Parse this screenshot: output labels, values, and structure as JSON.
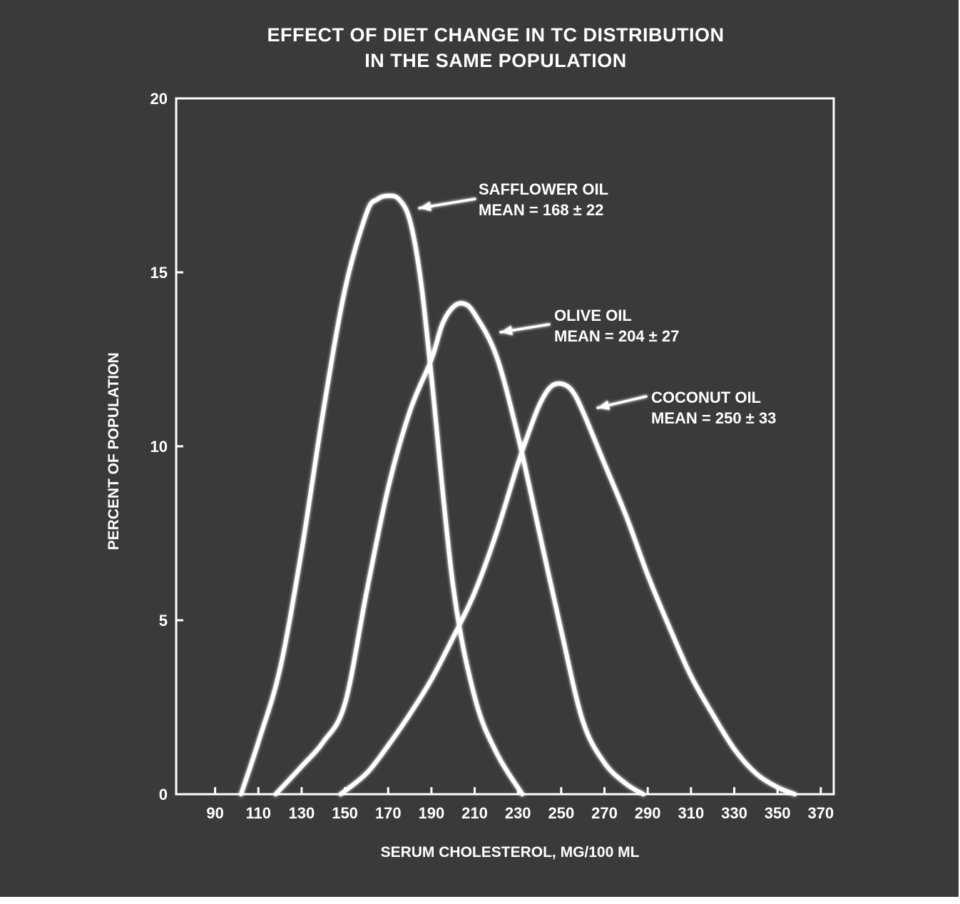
{
  "chart_data": {
    "type": "line",
    "title": "EFFECT OF DIET CHANGE IN TC DISTRIBUTION",
    "subtitle": "IN THE SAME POPULATION",
    "xlabel": "SERUM CHOLESTEROL, MG/100 ML",
    "ylabel": "PERCENT OF POPULATION",
    "xlim": [
      72,
      376
    ],
    "ylim": [
      0,
      20
    ],
    "xticks": [
      90,
      110,
      130,
      150,
      170,
      190,
      210,
      230,
      250,
      270,
      290,
      310,
      330,
      350,
      370
    ],
    "yticks": [
      0,
      5,
      10,
      15,
      20
    ],
    "grid": false,
    "series": [
      {
        "id": "safflower",
        "annotation": [
          "SAFFLOWER OIL",
          "MEAN = 168 ± 22"
        ],
        "x": [
          102,
          110,
          120,
          130,
          140,
          150,
          160,
          165,
          170,
          175,
          180,
          185,
          190,
          200,
          210,
          220,
          232
        ],
        "y": [
          0,
          1.5,
          3.6,
          7.0,
          11.0,
          14.5,
          16.7,
          17.1,
          17.2,
          17.1,
          16.5,
          14.8,
          12.0,
          6.0,
          2.8,
          1.2,
          0
        ]
      },
      {
        "id": "olive",
        "annotation": [
          "OLIVE OIL",
          "MEAN = 204 ± 27"
        ],
        "x": [
          118,
          130,
          140,
          150,
          160,
          170,
          180,
          190,
          195,
          200,
          205,
          210,
          220,
          230,
          240,
          250,
          260,
          270,
          280,
          288
        ],
        "y": [
          0,
          0.8,
          1.5,
          2.6,
          5.8,
          8.8,
          11.0,
          12.5,
          13.5,
          14.0,
          14.1,
          13.8,
          12.6,
          10.3,
          7.5,
          4.7,
          2.1,
          0.9,
          0.3,
          0
        ]
      },
      {
        "id": "coconut",
        "annotation": [
          "COCONUT OIL",
          "MEAN = 250 ± 33"
        ],
        "x": [
          148,
          160,
          170,
          180,
          190,
          200,
          210,
          220,
          230,
          235,
          240,
          245,
          250,
          255,
          260,
          270,
          280,
          290,
          300,
          310,
          320,
          330,
          340,
          350,
          358
        ],
        "y": [
          0,
          0.6,
          1.4,
          2.3,
          3.3,
          4.5,
          5.8,
          7.5,
          9.5,
          10.4,
          11.2,
          11.7,
          11.8,
          11.6,
          11.0,
          9.5,
          8.0,
          6.3,
          4.8,
          3.4,
          2.3,
          1.3,
          0.6,
          0.2,
          0
        ]
      }
    ]
  },
  "colors": {
    "background": "#3a3a3a",
    "ink": "#ffffff"
  }
}
